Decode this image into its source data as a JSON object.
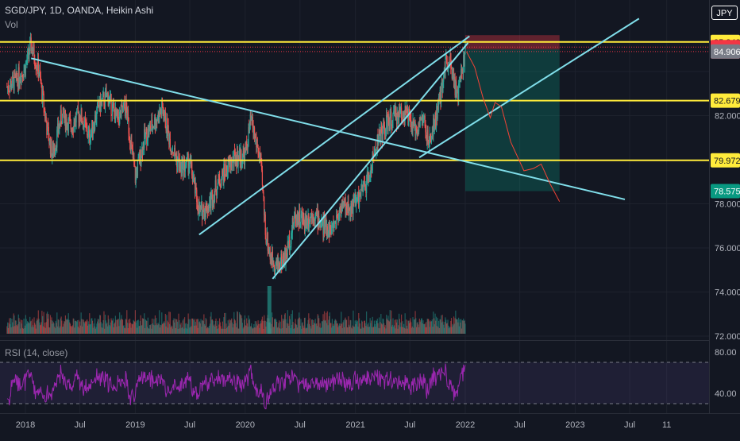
{
  "header": {
    "symbol_line": "SGD/JPY, 1D, OANDA, Heikin Ashi",
    "vol_label": "Vol",
    "rsi_label": "RSI (14, close)",
    "currency": "JPY"
  },
  "chart_data": {
    "type": "line",
    "title": "SGD/JPY, 1D, OANDA, Heikin Ashi",
    "xlabel": "",
    "ylabel": "",
    "ylim": [
      72.0,
      87.0
    ],
    "x_ticks": [
      "2018",
      "Jul",
      "2019",
      "Jul",
      "2020",
      "Jul",
      "2021",
      "Jul",
      "2022",
      "Jul",
      "2023",
      "Jul",
      "11"
    ],
    "y_ticks": [
      72.0,
      74.0,
      76.0,
      78.0,
      82.0
    ],
    "price_labels": [
      {
        "text": "85.342",
        "value": 85.342,
        "bg": "#ffeb3b",
        "fg": "#131722"
      },
      {
        "text": "85.108",
        "value": 85.108,
        "bg": "#f23645",
        "fg": "#ffffff"
      },
      {
        "text": "84.907",
        "value": 84.907,
        "bg": "#f23645",
        "fg": "#ffffff"
      },
      {
        "text": "84.906",
        "value": 84.906,
        "bg": "#787b86",
        "fg": "#ffffff"
      },
      {
        "text": "82.679",
        "value": 82.679,
        "bg": "#ffeb3b",
        "fg": "#131722"
      },
      {
        "text": "79.972",
        "value": 79.972,
        "bg": "#ffeb3b",
        "fg": "#131722"
      },
      {
        "text": "78.575",
        "value": 78.575,
        "bg": "#089981",
        "fg": "#ffffff"
      }
    ],
    "horizontal_levels": [
      85.342,
      82.679,
      79.972
    ],
    "series": [
      {
        "values": [
          [
            "2017-11-01",
            83.3
          ],
          [
            "2017-12-01",
            83.6
          ],
          [
            "2018-01-01",
            84.2
          ],
          [
            "2018-01-20",
            85.2
          ],
          [
            "2018-02-15",
            84.0
          ],
          [
            "2018-03-15",
            81.3
          ],
          [
            "2018-04-01",
            80.2
          ],
          [
            "2018-05-01",
            82.0
          ],
          [
            "2018-06-01",
            81.5
          ],
          [
            "2018-07-01",
            82.1
          ],
          [
            "2018-08-01",
            81.0
          ],
          [
            "2018-09-01",
            82.4
          ],
          [
            "2018-10-01",
            82.9
          ],
          [
            "2018-11-01",
            81.8
          ],
          [
            "2018-12-01",
            82.4
          ],
          [
            "2019-01-01",
            79.2
          ],
          [
            "2019-02-01",
            81.0
          ],
          [
            "2019-03-01",
            81.6
          ],
          [
            "2019-04-01",
            82.3
          ],
          [
            "2019-05-01",
            80.6
          ],
          [
            "2019-06-01",
            79.6
          ],
          [
            "2019-07-01",
            79.9
          ],
          [
            "2019-08-01",
            77.6
          ],
          [
            "2019-09-01",
            77.9
          ],
          [
            "2019-10-01",
            78.9
          ],
          [
            "2019-11-01",
            79.6
          ],
          [
            "2019-12-01",
            80.1
          ],
          [
            "2020-01-01",
            80.2
          ],
          [
            "2020-01-20",
            81.8
          ],
          [
            "2020-02-20",
            80.0
          ],
          [
            "2020-03-10",
            76.6
          ],
          [
            "2020-03-25",
            75.6
          ],
          [
            "2020-04-15",
            75.2
          ],
          [
            "2020-05-15",
            75.6
          ],
          [
            "2020-06-15",
            77.5
          ],
          [
            "2020-07-15",
            77.2
          ],
          [
            "2020-08-15",
            77.6
          ],
          [
            "2020-09-15",
            77.0
          ],
          [
            "2020-10-15",
            76.8
          ],
          [
            "2020-11-15",
            77.9
          ],
          [
            "2020-12-15",
            77.8
          ],
          [
            "2021-01-15",
            78.3
          ],
          [
            "2021-02-15",
            79.2
          ],
          [
            "2021-03-15",
            80.9
          ],
          [
            "2021-04-15",
            81.6
          ],
          [
            "2021-05-15",
            82.0
          ],
          [
            "2021-06-15",
            82.2
          ],
          [
            "2021-07-15",
            81.3
          ],
          [
            "2021-08-15",
            81.9
          ],
          [
            "2021-09-01",
            80.6
          ],
          [
            "2021-09-20",
            81.6
          ],
          [
            "2021-10-10",
            82.8
          ],
          [
            "2021-10-25",
            84.3
          ],
          [
            "2021-11-10",
            84.7
          ],
          [
            "2021-11-25",
            83.6
          ],
          [
            "2021-12-05",
            82.7
          ],
          [
            "2021-12-20",
            84.0
          ],
          [
            "2022-01-01",
            84.9
          ]
        ]
      },
      {
        "values": [
          [
            "2022-01-05",
            84.9
          ],
          [
            "2022-02-01",
            84.2
          ],
          [
            "2022-03-01",
            82.8
          ],
          [
            "2022-03-25",
            81.9
          ],
          [
            "2022-04-10",
            82.6
          ],
          [
            "2022-05-01",
            82.4
          ],
          [
            "2022-06-01",
            80.8
          ],
          [
            "2022-07-15",
            79.5
          ],
          [
            "2022-08-15",
            79.6
          ],
          [
            "2022-09-10",
            79.8
          ],
          [
            "2022-10-10",
            78.9
          ],
          [
            "2022-11-10",
            78.1
          ]
        ]
      }
    ],
    "trendlines": [
      {
        "x1": "2018-01-20",
        "y1": 84.6,
        "x2": "2023-06-15",
        "y2": 78.2
      },
      {
        "x1": "2019-08-01",
        "y1": 76.6,
        "x2": "2022-01-15",
        "y2": 85.6
      },
      {
        "x1": "2020-04-01",
        "y1": 74.6,
        "x2": "2022-01-10",
        "y2": 85.3
      },
      {
        "x1": "2021-08-01",
        "y1": 80.1,
        "x2": "2023-08-01",
        "y2": 86.4
      }
    ],
    "position": {
      "x_start": "2022-01-01",
      "x_end": "2022-11-10",
      "stop_top": 85.65,
      "entry": 85.0,
      "target": 78.575
    },
    "volume": {
      "max": 100
    },
    "rsi": {
      "ylim": [
        20,
        90
      ],
      "upper": 70,
      "lower": 30,
      "y_ticks": [
        80.0,
        40.0
      ]
    }
  },
  "colors": {
    "background": "#131722",
    "grid": "#1e222d",
    "text": "#b2b5be",
    "level": "#ffeb3b",
    "trend": "#80deea",
    "up": "#26a69a",
    "down": "#ef5350",
    "projection": "#f44336",
    "rsi": "#9c27b0"
  }
}
